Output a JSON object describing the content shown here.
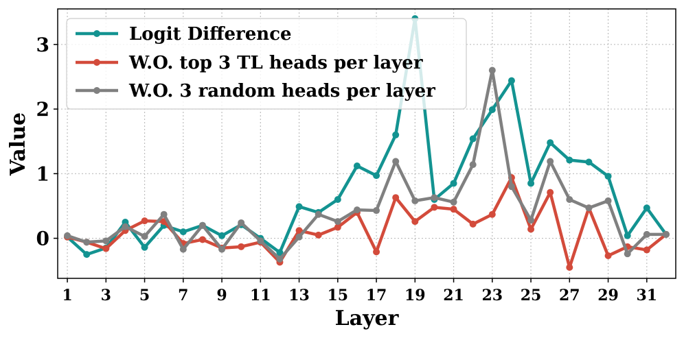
{
  "chart_data": {
    "type": "line",
    "xlabel": "Layer",
    "ylabel": "Value",
    "xlim": [
      0.5,
      32.5
    ],
    "ylim": [
      -0.62,
      3.55
    ],
    "xticks": [
      "1",
      "3",
      "5",
      "7",
      "9",
      "11",
      "13",
      "15",
      "17",
      "19",
      "21",
      "23",
      "25",
      "27",
      "29",
      "31"
    ],
    "yticks": [
      "0",
      "1",
      "2",
      "3"
    ],
    "grid": true,
    "legend_position": "top-left",
    "x": [
      1,
      2,
      3,
      4,
      5,
      6,
      7,
      8,
      9,
      10,
      11,
      12,
      13,
      14,
      15,
      16,
      17,
      18,
      19,
      20,
      21,
      22,
      23,
      24,
      25,
      26,
      27,
      28,
      29,
      30,
      31,
      32
    ],
    "series": [
      {
        "name": "Logit Difference",
        "color": "#139391",
        "values": [
          0.02,
          -0.25,
          -0.15,
          0.25,
          -0.14,
          0.2,
          0.1,
          0.2,
          0.04,
          0.21,
          0.0,
          -0.22,
          0.49,
          0.4,
          0.6,
          1.12,
          0.97,
          1.6,
          3.4,
          0.6,
          0.85,
          1.54,
          1.99,
          2.44,
          0.85,
          1.48,
          1.21,
          1.18,
          0.96,
          0.04,
          0.47,
          0.06
        ]
      },
      {
        "name": "W.O. top 3 TL heads per layer",
        "color": "#d34b3b",
        "values": [
          0.02,
          -0.06,
          -0.16,
          0.12,
          0.27,
          0.26,
          -0.08,
          -0.02,
          -0.15,
          -0.13,
          -0.06,
          -0.37,
          0.12,
          0.05,
          0.17,
          0.4,
          -0.21,
          0.63,
          0.26,
          0.48,
          0.45,
          0.22,
          0.37,
          0.94,
          0.14,
          0.71,
          -0.45,
          0.47,
          -0.27,
          -0.13,
          -0.18,
          0.06
        ]
      },
      {
        "name": "W.O. 3 random heads per layer",
        "color": "#808080",
        "values": [
          0.04,
          -0.06,
          -0.04,
          0.18,
          0.03,
          0.37,
          -0.17,
          0.2,
          -0.17,
          0.24,
          -0.04,
          -0.32,
          0.02,
          0.37,
          0.26,
          0.44,
          0.43,
          1.19,
          0.58,
          0.63,
          0.56,
          1.14,
          2.6,
          0.8,
          0.28,
          1.19,
          0.6,
          0.47,
          0.58,
          -0.24,
          0.06,
          0.06
        ]
      }
    ]
  }
}
